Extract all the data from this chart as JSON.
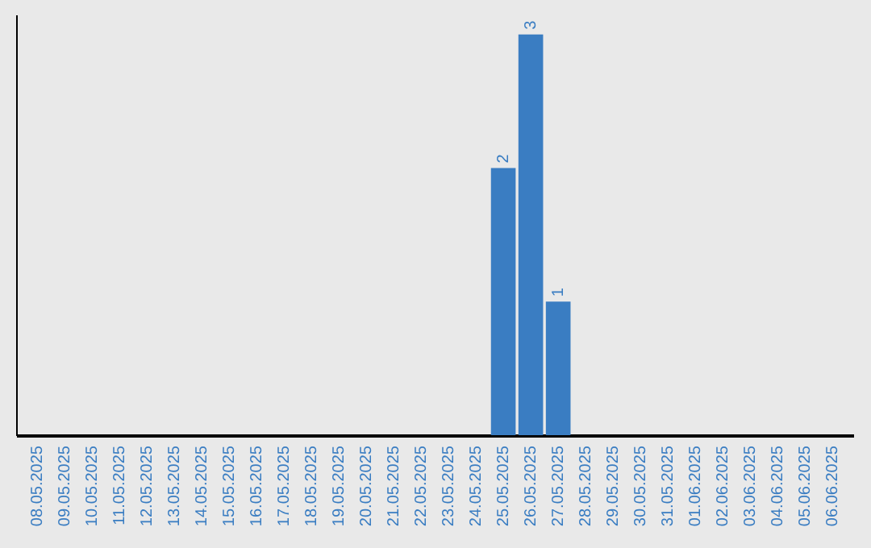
{
  "chart_data": {
    "type": "bar",
    "categories": [
      "08.05.2025",
      "09.05.2025",
      "10.05.2025",
      "11.05.2025",
      "12.05.2025",
      "13.05.2025",
      "14.05.2025",
      "15.05.2025",
      "16.05.2025",
      "17.05.2025",
      "18.05.2025",
      "19.05.2025",
      "20.05.2025",
      "21.05.2025",
      "22.05.2025",
      "23.05.2025",
      "24.05.2025",
      "25.05.2025",
      "26.05.2025",
      "27.05.2025",
      "28.05.2025",
      "29.05.2025",
      "30.05.2025",
      "31.05.2025",
      "01.06.2025",
      "02.06.2025",
      "03.06.2025",
      "04.06.2025",
      "05.06.2025",
      "06.06.2025"
    ],
    "values": [
      null,
      null,
      null,
      null,
      null,
      null,
      null,
      null,
      null,
      null,
      null,
      null,
      null,
      null,
      null,
      null,
      null,
      2,
      3,
      1,
      null,
      null,
      null,
      null,
      null,
      null,
      null,
      null,
      null,
      null
    ],
    "data_labels": true,
    "color": "#3a7dc2",
    "grid": false
  }
}
